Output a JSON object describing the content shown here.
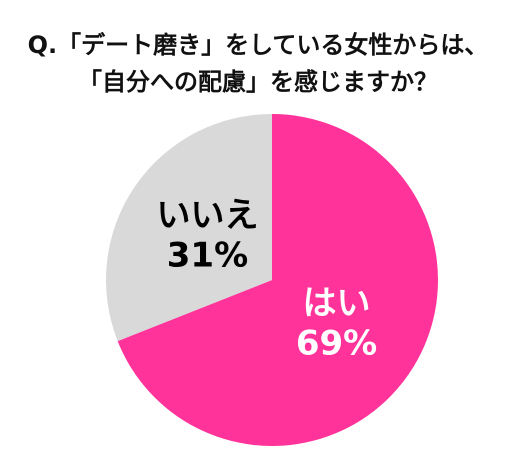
{
  "chart_data": {
    "type": "pie",
    "title": [
      "Q.「デート磨き」をしている女性からは、",
      "「自分への配慮」を感じますか？"
    ],
    "categories": [
      "はい",
      "いいえ"
    ],
    "values": [
      69,
      31
    ],
    "value_labels": [
      "69%",
      "31%"
    ],
    "colors": [
      "#ff3399",
      "#d9d9d9"
    ],
    "label_colors": [
      "#ffffff",
      "#000000"
    ]
  }
}
